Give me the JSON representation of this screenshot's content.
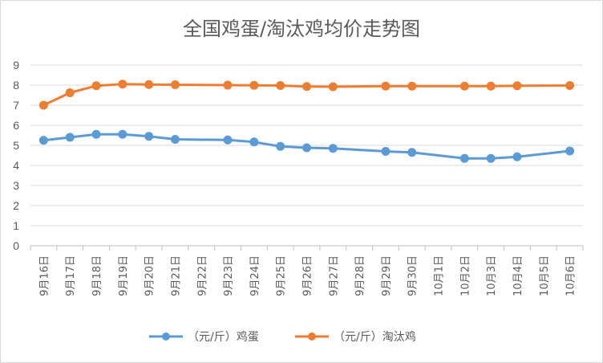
{
  "chart_data": {
    "type": "line",
    "title": "全国鸡蛋/淘汰鸡均价走势图",
    "categories": [
      "9月16日",
      "9月17日",
      "9月18日",
      "9月19日",
      "9月20日",
      "9月21日",
      "9月22日",
      "9月23日",
      "9月24日",
      "9月25日",
      "9月26日",
      "9月27日",
      "9月28日",
      "9月29日",
      "9月30日",
      "10月1日",
      "10月2日",
      "10月3日",
      "10月4日",
      "10月5日",
      "10月6日"
    ],
    "ylim": [
      0,
      9
    ],
    "yticks": [
      0,
      1,
      2,
      3,
      4,
      5,
      6,
      7,
      8,
      9
    ],
    "grid": true,
    "legend_position": "bottom",
    "series": [
      {
        "name": "（元/斤）鸡蛋",
        "color": "#5b9bd5",
        "values": [
          5.25,
          5.4,
          5.55,
          5.55,
          5.45,
          5.3,
          null,
          5.27,
          5.17,
          4.95,
          4.88,
          4.85,
          null,
          4.7,
          4.65,
          null,
          4.35,
          4.35,
          4.43,
          null,
          4.72
        ]
      },
      {
        "name": "（元/斤）淘汰鸡",
        "color": "#ed7d31",
        "values": [
          7.0,
          7.62,
          7.97,
          8.05,
          8.03,
          8.02,
          null,
          8.0,
          7.99,
          7.98,
          7.93,
          7.92,
          null,
          7.95,
          7.95,
          null,
          7.95,
          7.95,
          7.97,
          null,
          7.98
        ]
      }
    ]
  }
}
